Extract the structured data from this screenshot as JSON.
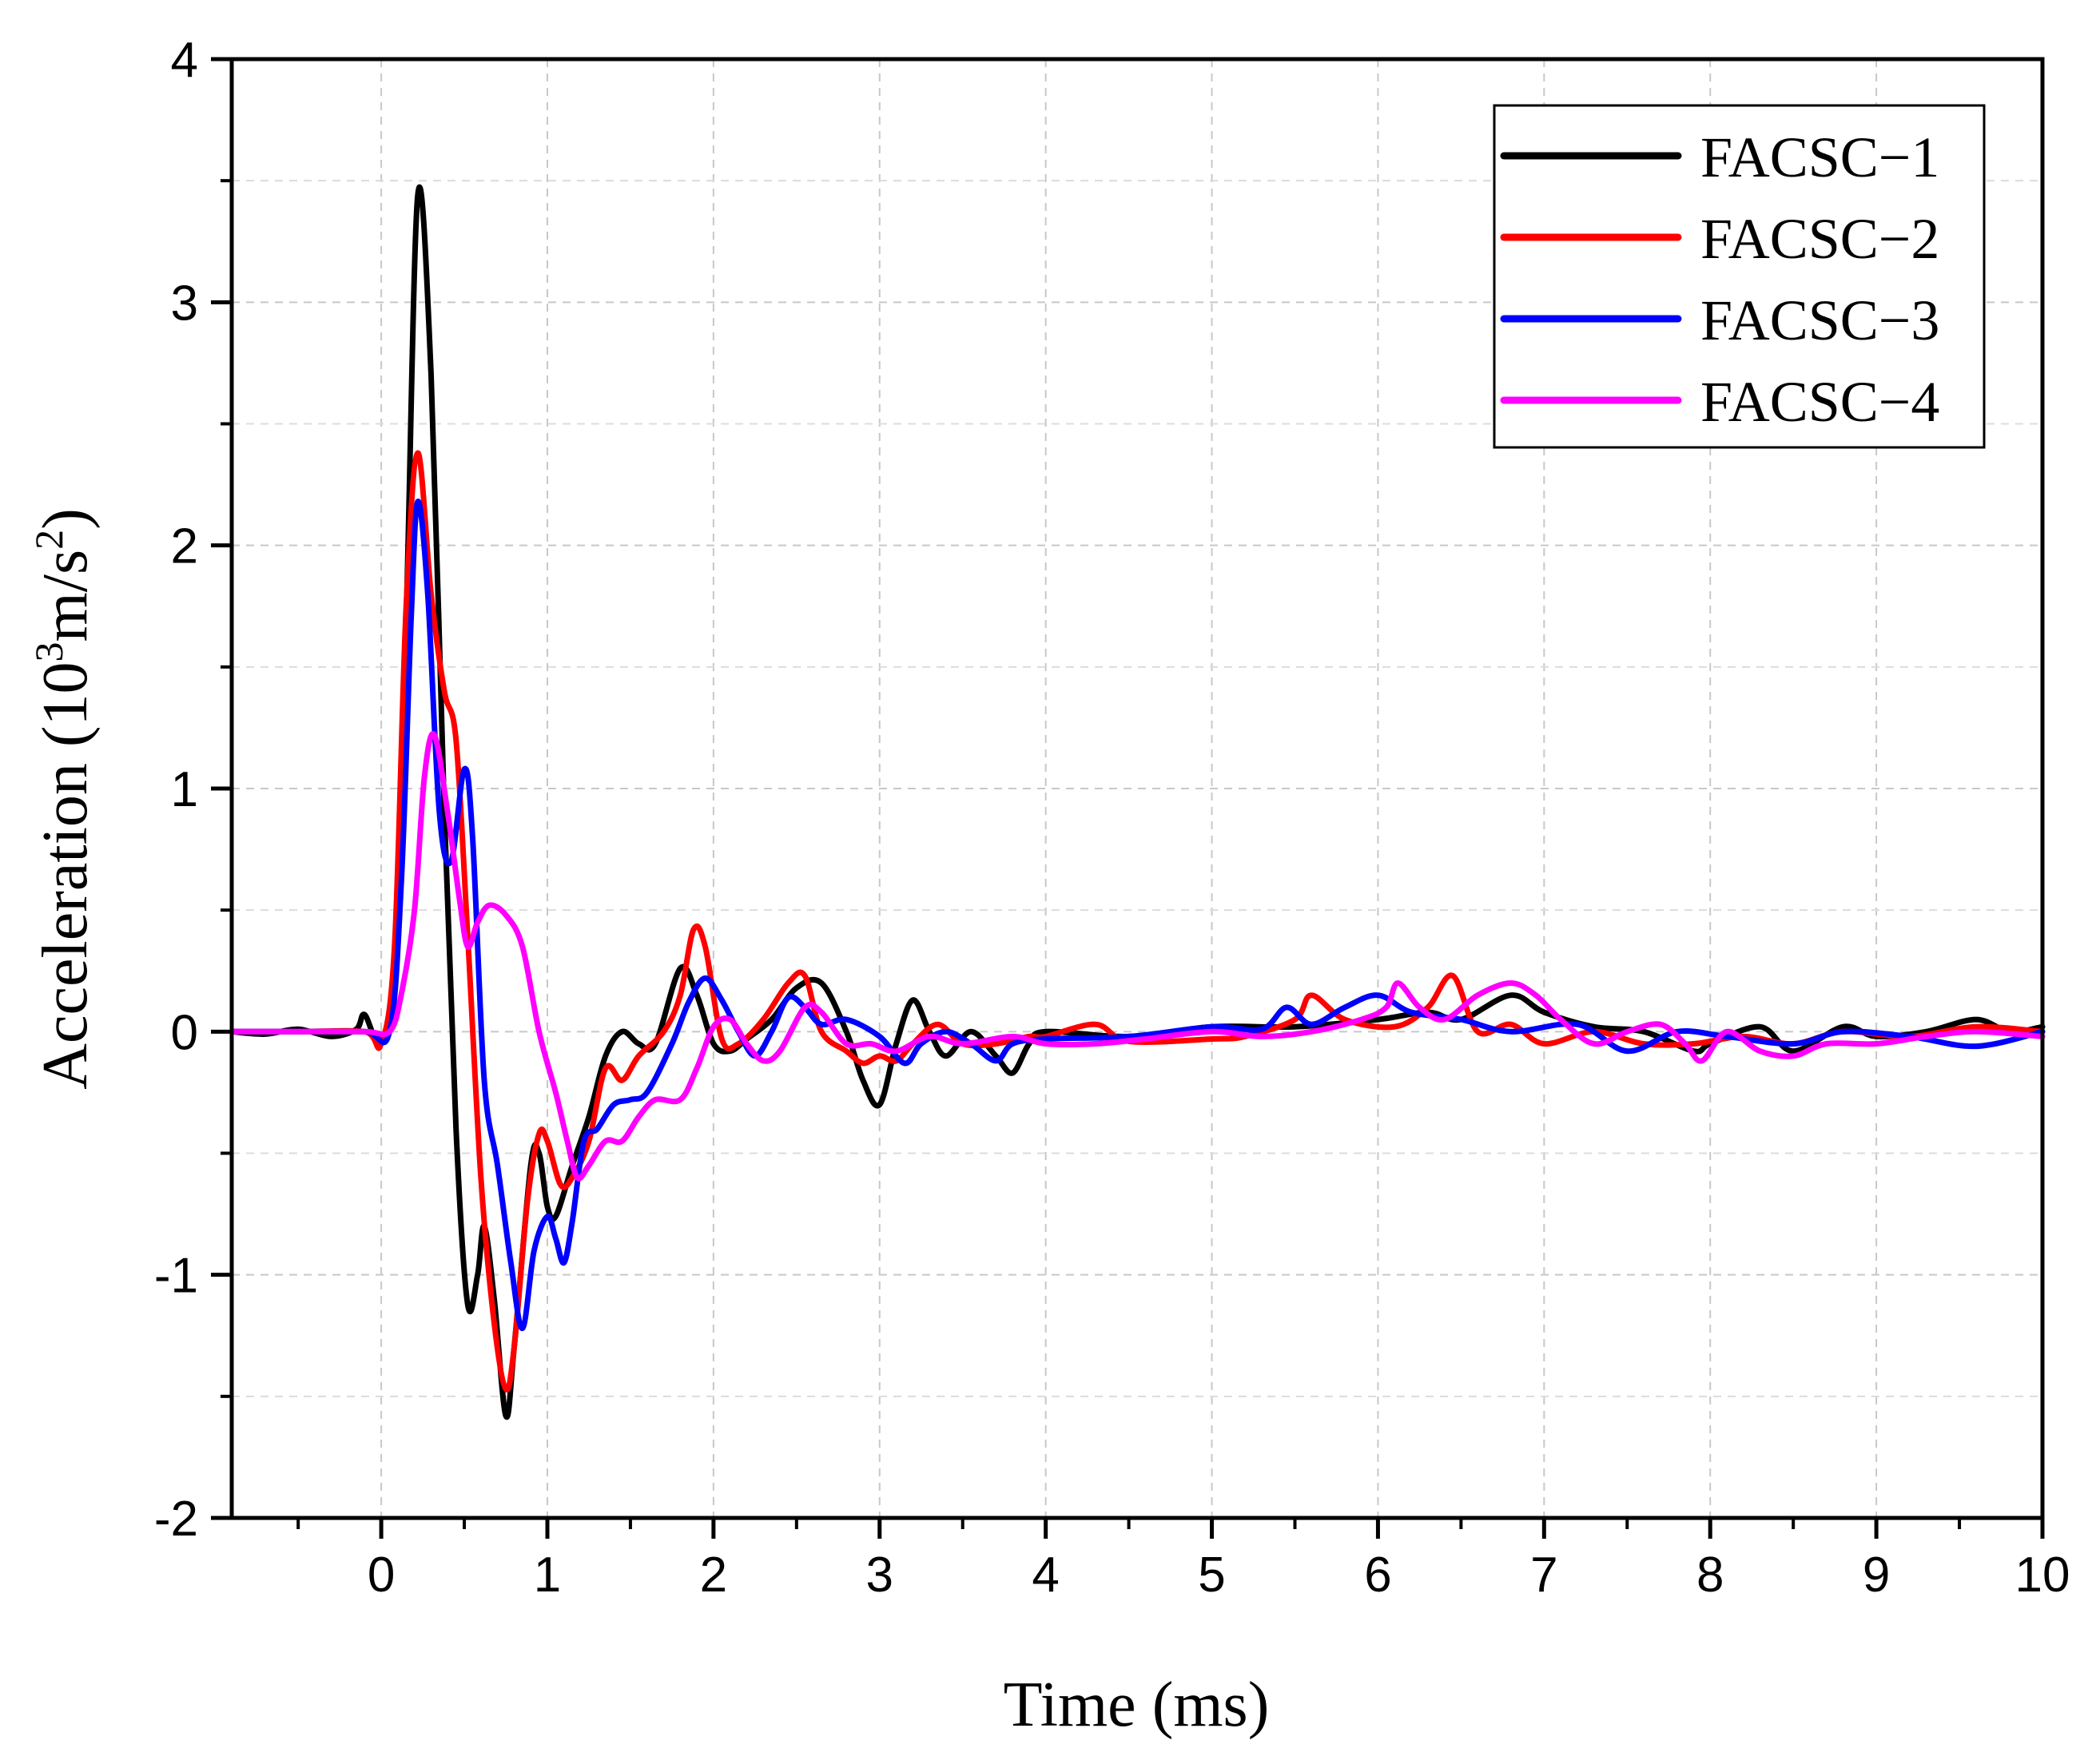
{
  "chart_data": {
    "type": "line",
    "title": "",
    "xlabel": "Time (ms)",
    "ylabel": {
      "prefix": "Acceleration (10",
      "sup1": "3",
      "mid": "m/s",
      "sup2": "2",
      "suffix": ")"
    },
    "xlim": [
      -0.9,
      10
    ],
    "ylim": [
      -2,
      4
    ],
    "xticks": [
      0,
      1,
      2,
      3,
      4,
      5,
      6,
      7,
      8,
      9,
      10
    ],
    "xtick_labels": [
      "0",
      "1",
      "2",
      "3",
      "4",
      "5",
      "6",
      "7",
      "8",
      "9",
      "10"
    ],
    "yticks": [
      -2,
      -1,
      0,
      1,
      2,
      3,
      4
    ],
    "ytick_labels": [
      "-2",
      "-1",
      "0",
      "1",
      "2",
      "3",
      "4"
    ],
    "grid": true,
    "legend_position": "top-right",
    "series": [
      {
        "name": "FACSC−1",
        "color": "#000000",
        "points": [
          [
            -0.9,
            0
          ],
          [
            -0.7,
            -0.01
          ],
          [
            -0.5,
            0.01
          ],
          [
            -0.3,
            -0.02
          ],
          [
            -0.15,
            0.01
          ],
          [
            -0.1,
            0.07
          ],
          [
            0,
            -0.05
          ],
          [
            0.08,
            0.3
          ],
          [
            0.15,
            1.7
          ],
          [
            0.22,
            3.44
          ],
          [
            0.3,
            2.7
          ],
          [
            0.38,
            0.9
          ],
          [
            0.45,
            -0.4
          ],
          [
            0.52,
            -1.12
          ],
          [
            0.58,
            -1.0
          ],
          [
            0.62,
            -0.8
          ],
          [
            0.68,
            -1.1
          ],
          [
            0.75,
            -1.58
          ],
          [
            0.8,
            -1.3
          ],
          [
            0.9,
            -0.55
          ],
          [
            0.95,
            -0.5
          ],
          [
            1.0,
            -0.72
          ],
          [
            1.05,
            -0.76
          ],
          [
            1.15,
            -0.55
          ],
          [
            1.25,
            -0.35
          ],
          [
            1.35,
            -0.1
          ],
          [
            1.45,
            0.0
          ],
          [
            1.55,
            -0.05
          ],
          [
            1.65,
            -0.05
          ],
          [
            1.8,
            0.26
          ],
          [
            1.9,
            0.15
          ],
          [
            2.0,
            -0.05
          ],
          [
            2.1,
            -0.08
          ],
          [
            2.2,
            -0.03
          ],
          [
            2.35,
            0.05
          ],
          [
            2.5,
            0.18
          ],
          [
            2.65,
            0.2
          ],
          [
            2.8,
            0.0
          ],
          [
            2.9,
            -0.2
          ],
          [
            3.0,
            -0.3
          ],
          [
            3.1,
            -0.05
          ],
          [
            3.2,
            0.13
          ],
          [
            3.3,
            0.0
          ],
          [
            3.4,
            -0.1
          ],
          [
            3.55,
            0.0
          ],
          [
            3.7,
            -0.1
          ],
          [
            3.8,
            -0.17
          ],
          [
            3.9,
            -0.05
          ],
          [
            4.0,
            0.0
          ],
          [
            4.5,
            -0.02
          ],
          [
            5.0,
            0.02
          ],
          [
            5.5,
            0.02
          ],
          [
            6.0,
            0.05
          ],
          [
            6.3,
            0.08
          ],
          [
            6.5,
            0.05
          ],
          [
            6.8,
            0.15
          ],
          [
            7.0,
            0.08
          ],
          [
            7.3,
            0.02
          ],
          [
            7.6,
            0.0
          ],
          [
            7.9,
            -0.08
          ],
          [
            8.0,
            -0.05
          ],
          [
            8.3,
            0.02
          ],
          [
            8.5,
            -0.08
          ],
          [
            8.8,
            0.02
          ],
          [
            9.0,
            -0.02
          ],
          [
            9.3,
            0.0
          ],
          [
            9.6,
            0.05
          ],
          [
            9.8,
            0.0
          ],
          [
            10,
            0.02
          ]
        ]
      },
      {
        "name": "FACSC−2",
        "color": "#ff0000",
        "points": [
          [
            -0.9,
            0
          ],
          [
            -0.5,
            0.0
          ],
          [
            -0.1,
            0.0
          ],
          [
            0,
            -0.05
          ],
          [
            0.08,
            0.35
          ],
          [
            0.15,
            1.75
          ],
          [
            0.22,
            2.38
          ],
          [
            0.3,
            1.8
          ],
          [
            0.38,
            1.4
          ],
          [
            0.45,
            1.2
          ],
          [
            0.52,
            0.4
          ],
          [
            0.6,
            -0.6
          ],
          [
            0.68,
            -1.2
          ],
          [
            0.75,
            -1.47
          ],
          [
            0.8,
            -1.3
          ],
          [
            0.88,
            -0.7
          ],
          [
            0.95,
            -0.42
          ],
          [
            1.0,
            -0.45
          ],
          [
            1.08,
            -0.63
          ],
          [
            1.15,
            -0.6
          ],
          [
            1.25,
            -0.45
          ],
          [
            1.35,
            -0.15
          ],
          [
            1.45,
            -0.2
          ],
          [
            1.55,
            -0.1
          ],
          [
            1.7,
            0.0
          ],
          [
            1.8,
            0.15
          ],
          [
            1.88,
            0.42
          ],
          [
            1.95,
            0.35
          ],
          [
            2.05,
            -0.03
          ],
          [
            2.15,
            -0.05
          ],
          [
            2.3,
            0.05
          ],
          [
            2.45,
            0.2
          ],
          [
            2.55,
            0.23
          ],
          [
            2.65,
            0.0
          ],
          [
            2.8,
            -0.08
          ],
          [
            2.9,
            -0.13
          ],
          [
            3.0,
            -0.1
          ],
          [
            3.1,
            -0.12
          ],
          [
            3.2,
            -0.05
          ],
          [
            3.35,
            0.03
          ],
          [
            3.5,
            -0.05
          ],
          [
            3.7,
            -0.05
          ],
          [
            3.9,
            -0.02
          ],
          [
            4.0,
            -0.02
          ],
          [
            4.3,
            0.03
          ],
          [
            4.5,
            -0.04
          ],
          [
            5.0,
            -0.03
          ],
          [
            5.2,
            -0.02
          ],
          [
            5.5,
            0.05
          ],
          [
            5.6,
            0.15
          ],
          [
            5.8,
            0.05
          ],
          [
            6.1,
            0.02
          ],
          [
            6.3,
            0.1
          ],
          [
            6.45,
            0.23
          ],
          [
            6.6,
            0.0
          ],
          [
            6.8,
            0.03
          ],
          [
            7.0,
            -0.05
          ],
          [
            7.3,
            0.0
          ],
          [
            7.6,
            -0.05
          ],
          [
            7.9,
            -0.05
          ],
          [
            8.2,
            -0.02
          ],
          [
            8.5,
            -0.05
          ],
          [
            8.8,
            0.0
          ],
          [
            9.2,
            -0.02
          ],
          [
            9.6,
            0.02
          ],
          [
            10,
            0.0
          ]
        ]
      },
      {
        "name": "FACSC−3",
        "color": "#0000ff",
        "points": [
          [
            -0.9,
            0
          ],
          [
            -0.5,
            0.0
          ],
          [
            -0.1,
            0.0
          ],
          [
            0.05,
            0.0
          ],
          [
            0.12,
            0.6
          ],
          [
            0.18,
            1.7
          ],
          [
            0.22,
            2.18
          ],
          [
            0.28,
            1.8
          ],
          [
            0.35,
            0.9
          ],
          [
            0.42,
            0.7
          ],
          [
            0.5,
            1.08
          ],
          [
            0.55,
            0.8
          ],
          [
            0.62,
            -0.2
          ],
          [
            0.7,
            -0.55
          ],
          [
            0.78,
            -0.95
          ],
          [
            0.85,
            -1.22
          ],
          [
            0.92,
            -0.9
          ],
          [
            1.0,
            -0.76
          ],
          [
            1.05,
            -0.85
          ],
          [
            1.1,
            -0.95
          ],
          [
            1.15,
            -0.78
          ],
          [
            1.22,
            -0.45
          ],
          [
            1.3,
            -0.4
          ],
          [
            1.4,
            -0.3
          ],
          [
            1.5,
            -0.28
          ],
          [
            1.6,
            -0.25
          ],
          [
            1.75,
            -0.05
          ],
          [
            1.85,
            0.12
          ],
          [
            1.95,
            0.22
          ],
          [
            2.05,
            0.13
          ],
          [
            2.15,
            0.0
          ],
          [
            2.25,
            -0.1
          ],
          [
            2.35,
            0.0
          ],
          [
            2.45,
            0.14
          ],
          [
            2.55,
            0.1
          ],
          [
            2.65,
            0.03
          ],
          [
            2.8,
            0.05
          ],
          [
            3.0,
            -0.02
          ],
          [
            3.15,
            -0.13
          ],
          [
            3.25,
            -0.05
          ],
          [
            3.4,
            0.0
          ],
          [
            3.55,
            -0.05
          ],
          [
            3.7,
            -0.12
          ],
          [
            3.8,
            -0.05
          ],
          [
            4.0,
            -0.03
          ],
          [
            4.5,
            -0.02
          ],
          [
            5.0,
            0.02
          ],
          [
            5.3,
            0.01
          ],
          [
            5.45,
            0.1
          ],
          [
            5.6,
            0.03
          ],
          [
            5.8,
            0.1
          ],
          [
            6.0,
            0.15
          ],
          [
            6.2,
            0.08
          ],
          [
            6.5,
            0.05
          ],
          [
            6.8,
            0.0
          ],
          [
            7.2,
            0.03
          ],
          [
            7.5,
            -0.08
          ],
          [
            7.8,
            0.0
          ],
          [
            8.1,
            -0.02
          ],
          [
            8.5,
            -0.05
          ],
          [
            8.8,
            0.0
          ],
          [
            9.2,
            -0.02
          ],
          [
            9.6,
            -0.06
          ],
          [
            10,
            0.0
          ]
        ]
      },
      {
        "name": "FACSC−4",
        "color": "#ff00ff",
        "points": [
          [
            -0.9,
            0
          ],
          [
            -0.5,
            0.0
          ],
          [
            -0.1,
            0.0
          ],
          [
            0.05,
            0.0
          ],
          [
            0.12,
            0.15
          ],
          [
            0.2,
            0.5
          ],
          [
            0.26,
            1.05
          ],
          [
            0.32,
            1.22
          ],
          [
            0.4,
            0.9
          ],
          [
            0.47,
            0.55
          ],
          [
            0.52,
            0.35
          ],
          [
            0.58,
            0.45
          ],
          [
            0.65,
            0.52
          ],
          [
            0.75,
            0.48
          ],
          [
            0.85,
            0.35
          ],
          [
            0.95,
            0.0
          ],
          [
            1.05,
            -0.25
          ],
          [
            1.12,
            -0.45
          ],
          [
            1.18,
            -0.6
          ],
          [
            1.25,
            -0.55
          ],
          [
            1.35,
            -0.45
          ],
          [
            1.45,
            -0.45
          ],
          [
            1.55,
            -0.35
          ],
          [
            1.65,
            -0.28
          ],
          [
            1.8,
            -0.28
          ],
          [
            1.9,
            -0.15
          ],
          [
            2.0,
            0.02
          ],
          [
            2.1,
            0.05
          ],
          [
            2.2,
            -0.05
          ],
          [
            2.3,
            -0.12
          ],
          [
            2.4,
            -0.08
          ],
          [
            2.55,
            0.1
          ],
          [
            2.65,
            0.08
          ],
          [
            2.8,
            -0.05
          ],
          [
            2.95,
            -0.05
          ],
          [
            3.1,
            -0.08
          ],
          [
            3.3,
            -0.02
          ],
          [
            3.5,
            -0.05
          ],
          [
            3.8,
            -0.02
          ],
          [
            4.0,
            -0.05
          ],
          [
            4.3,
            -0.05
          ],
          [
            4.6,
            -0.03
          ],
          [
            5.0,
            0.0
          ],
          [
            5.3,
            -0.02
          ],
          [
            5.6,
            0.0
          ],
          [
            5.9,
            0.05
          ],
          [
            6.05,
            0.1
          ],
          [
            6.12,
            0.2
          ],
          [
            6.25,
            0.1
          ],
          [
            6.4,
            0.05
          ],
          [
            6.6,
            0.15
          ],
          [
            6.8,
            0.2
          ],
          [
            6.95,
            0.15
          ],
          [
            7.1,
            0.05
          ],
          [
            7.3,
            -0.05
          ],
          [
            7.5,
            0.0
          ],
          [
            7.7,
            0.03
          ],
          [
            7.85,
            -0.05
          ],
          [
            7.95,
            -0.12
          ],
          [
            8.1,
            0.0
          ],
          [
            8.3,
            -0.08
          ],
          [
            8.5,
            -0.1
          ],
          [
            8.7,
            -0.05
          ],
          [
            9.0,
            -0.05
          ],
          [
            9.3,
            -0.02
          ],
          [
            9.6,
            0.0
          ],
          [
            10,
            -0.02
          ]
        ]
      }
    ]
  }
}
